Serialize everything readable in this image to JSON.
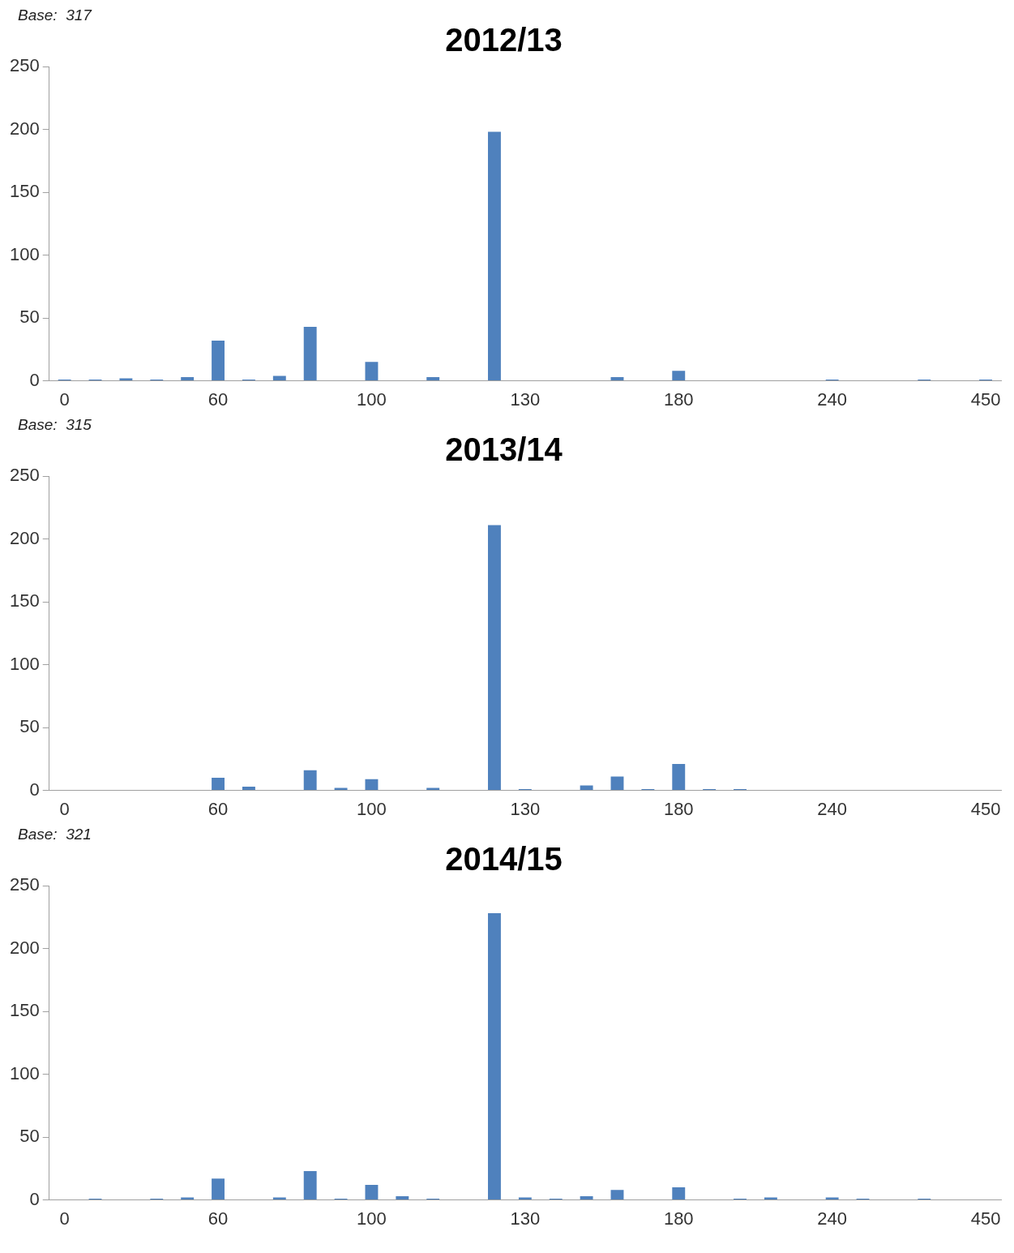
{
  "chart_data": [
    {
      "type": "bar",
      "title": "2012/13",
      "annotations": [
        "Base:  317"
      ],
      "categories": [
        "0",
        null,
        null,
        null,
        null,
        "60",
        null,
        null,
        null,
        null,
        "100",
        null,
        null,
        null,
        null,
        "130",
        null,
        null,
        null,
        null,
        "180",
        null,
        null,
        null,
        null,
        "240",
        null,
        null,
        null,
        null,
        "450"
      ],
      "values": [
        1,
        1,
        2,
        1,
        3,
        32,
        1,
        4,
        43,
        0,
        15,
        0,
        3,
        0,
        198,
        0,
        0,
        0,
        3,
        0,
        8,
        0,
        0,
        0,
        0,
        1,
        0,
        0,
        1,
        0,
        1
      ],
      "color": "#4f81bd",
      "ylim": [
        0,
        250
      ],
      "yticks": [
        0,
        50,
        100,
        150,
        200,
        250
      ],
      "grid": false
    },
    {
      "type": "bar",
      "title": "2013/14",
      "annotations": [
        "Base:  315"
      ],
      "categories": [
        "0",
        null,
        null,
        null,
        null,
        "60",
        null,
        null,
        null,
        null,
        "100",
        null,
        null,
        null,
        null,
        "130",
        null,
        null,
        null,
        null,
        "180",
        null,
        null,
        null,
        null,
        "240",
        null,
        null,
        null,
        null,
        "450"
      ],
      "values": [
        0,
        0,
        0,
        0,
        0,
        10,
        3,
        0,
        16,
        2,
        9,
        0,
        2,
        0,
        211,
        1,
        0,
        4,
        11,
        1,
        21,
        1,
        1,
        0,
        0,
        0,
        0,
        0,
        0,
        0,
        0
      ],
      "color": "#4f81bd",
      "ylim": [
        0,
        250
      ],
      "yticks": [
        0,
        50,
        100,
        150,
        200,
        250
      ],
      "grid": false
    },
    {
      "type": "bar",
      "title": "2014/15",
      "annotations": [
        "Base:  321"
      ],
      "categories": [
        "0",
        null,
        null,
        null,
        null,
        "60",
        null,
        null,
        null,
        null,
        "100",
        null,
        null,
        null,
        null,
        "130",
        null,
        null,
        null,
        null,
        "180",
        null,
        null,
        null,
        null,
        "240",
        null,
        null,
        null,
        null,
        "450"
      ],
      "values": [
        0,
        1,
        0,
        1,
        2,
        17,
        0,
        2,
        23,
        1,
        12,
        3,
        1,
        0,
        228,
        2,
        1,
        3,
        8,
        0,
        10,
        0,
        1,
        2,
        0,
        2,
        1,
        0,
        1,
        0,
        0
      ],
      "color": "#4f81bd",
      "ylim": [
        0,
        250
      ],
      "yticks": [
        0,
        50,
        100,
        150,
        200,
        250
      ],
      "grid": false
    }
  ]
}
